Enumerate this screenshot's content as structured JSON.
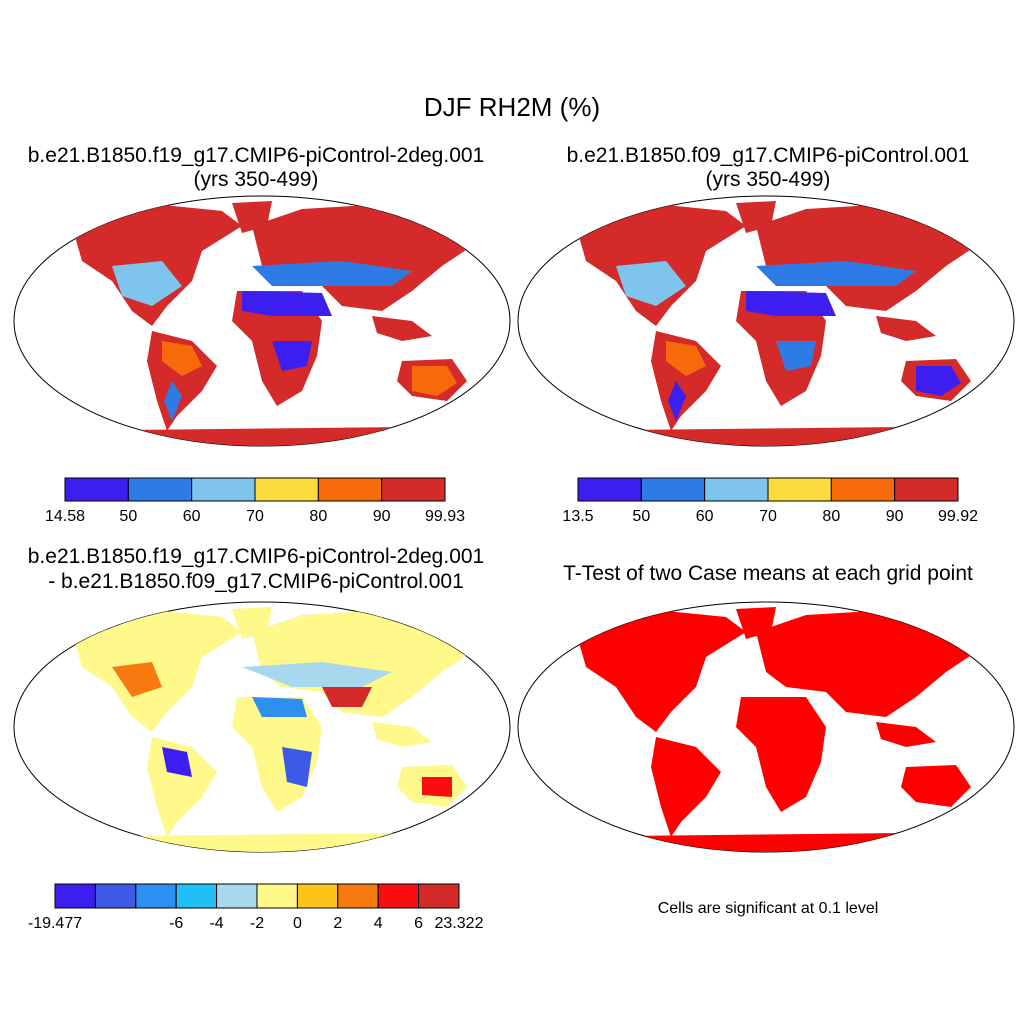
{
  "main_title": "DJF RH2M (%)",
  "panels": [
    {
      "title_line1": "b.e21.B1850.f19_g17.CMIP6-piControl-2deg.001",
      "title_line2": "(yrs 350-499)",
      "colorbar": {
        "labels": [
          "14.58",
          "50",
          "60",
          "70",
          "80",
          "90",
          "99.93"
        ],
        "colors": [
          "#3c1ef0",
          "#2e7be6",
          "#7ec4ec",
          "#fcdc3c",
          "#f66a0a",
          "#d42a2a"
        ]
      }
    },
    {
      "title_line1": "b.e21.B1850.f09_g17.CMIP6-piControl.001",
      "title_line2": "(yrs 350-499)",
      "colorbar": {
        "labels": [
          "13.5",
          "50",
          "60",
          "70",
          "80",
          "90",
          "99.92"
        ],
        "colors": [
          "#3c1ef0",
          "#2e7be6",
          "#7ec4ec",
          "#fcdc3c",
          "#f66a0a",
          "#d42a2a"
        ]
      }
    },
    {
      "title_line1": "b.e21.B1850.f19_g17.CMIP6-piControl-2deg.001",
      "title_line2": "- b.e21.B1850.f09_g17.CMIP6-piControl.001",
      "colorbar": {
        "labels": [
          "-19.477",
          "-6",
          "-4",
          "-2",
          "0",
          "2",
          "4",
          "6",
          "23.322"
        ],
        "colors": [
          "#3c1ef0",
          "#3c5ae6",
          "#2e8ff0",
          "#20c0f6",
          "#a8d8ee",
          "#fff88a",
          "#fcc418",
          "#f67a10",
          "#f80e0e",
          "#d42a2a"
        ]
      }
    },
    {
      "title_line1": "T-Test of two Case means at each grid point",
      "note": "Cells are significant at 0.1 level",
      "fill_color": "#ff0000"
    }
  ]
}
